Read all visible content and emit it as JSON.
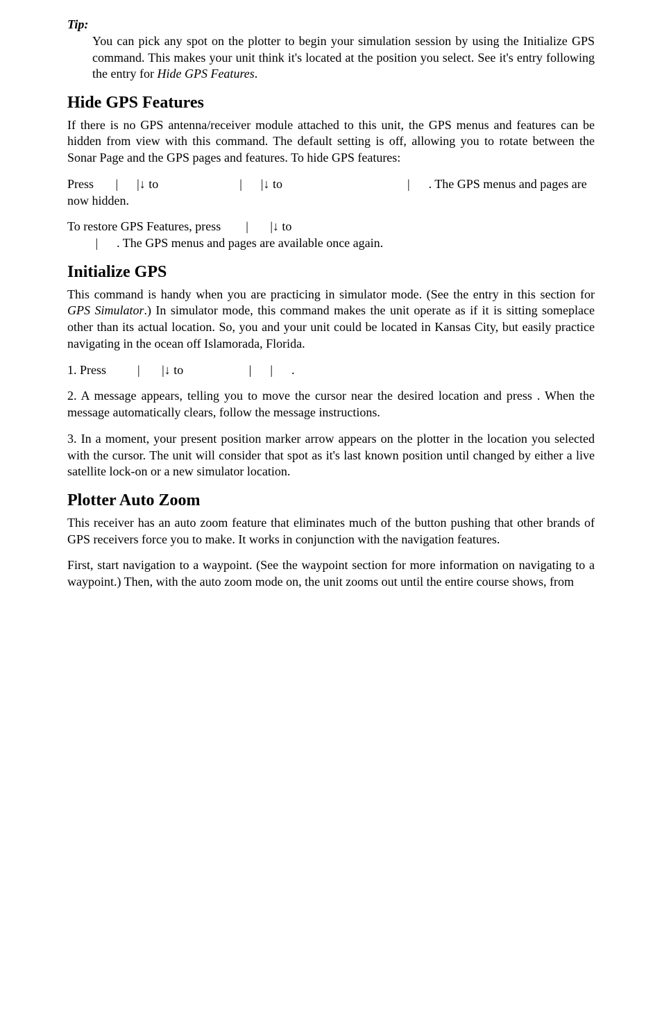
{
  "tip": {
    "label": "Tip:",
    "body_prefix": "You can pick any spot on the plotter to begin your simulation session by using the Initialize GPS command. This makes your unit think it's located at the position you select. See it's entry following the entry for ",
    "body_italic": "Hide GPS Features",
    "body_suffix": "."
  },
  "hide_gps": {
    "heading": "Hide GPS Features",
    "para1": "If there is no GPS antenna/receiver module attached to this unit, the GPS menus and features can be hidden from view with this command. The default setting is off, allowing you to rotate between the Sonar Page and the GPS pages and features. To hide GPS features:",
    "press_line_a": "Press ",
    "press_line_b": "|",
    "press_line_c": "|",
    "arrow_down": "↓",
    "press_line_d": " to ",
    "press_line_e": "|",
    "press_line_f": "|",
    "press_line_g": " to ",
    "press_line_h": "|",
    "press_line_i": ".",
    "press_tail": " The GPS menus and pages are now hidden.",
    "restore_a": "To restore GPS Features, press ",
    "restore_b": "|",
    "restore_c": "|",
    "restore_d": " to ",
    "restore_tail": "|",
    "restore_tail2": ". The GPS menus and pages are available once again."
  },
  "init_gps": {
    "heading": "Initialize GPS",
    "para1_a": "This command is handy when you are practicing in simulator mode. (See the entry in this section for ",
    "para1_italic": "GPS Simulator",
    "para1_b": ".) In simulator mode, this command makes the unit operate as if it is sitting someplace other than its actual location. So, you and your unit could be located in Kansas City, but easily practice navigating in the ocean off Islamorada, Florida.",
    "step1_a": "1. Press ",
    "step1_b": "|",
    "step1_c": "|",
    "step1_d": " to ",
    "step1_e": "|",
    "step1_f": "|",
    "step1_g": ".",
    "step2": "2. A message appears, telling you to move the cursor near the desired location and press       . When the message automatically clears, follow the message instructions.",
    "step3": "3. In a moment, your present position marker arrow appears on the plotter in the location you selected with the cursor. The unit will consider that spot as it's last known position until changed by either a live satellite lock-on or a new simulator location."
  },
  "plotter": {
    "heading": "Plotter Auto Zoom",
    "para1": "This receiver has an auto zoom feature that eliminates much of the button pushing that other brands of GPS receivers force you to make. It works in conjunction with the navigation features.",
    "para2": "First, start navigation to a waypoint. (See the waypoint section for more information on navigating to a waypoint.) Then, with the auto zoom mode on, the unit zooms out until the entire course shows, from"
  }
}
